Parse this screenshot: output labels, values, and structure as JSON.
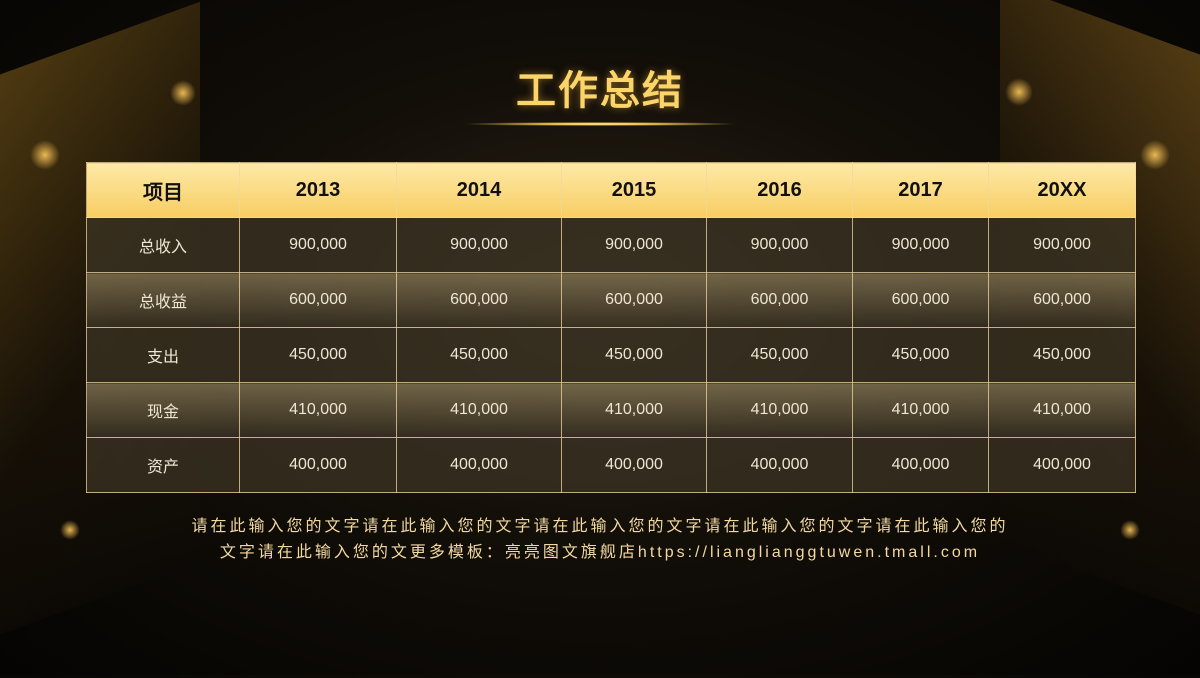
{
  "title": "工作总结",
  "table": {
    "headers": [
      "项目",
      "2013",
      "2014",
      "2015",
      "2016",
      "2017",
      "20XX"
    ],
    "rows": [
      [
        "总收入",
        "900,000",
        "900,000",
        "900,000",
        "900,000",
        "900,000",
        "900,000"
      ],
      [
        "总收益",
        "600,000",
        "600,000",
        "600,000",
        "600,000",
        "600,000",
        "600,000"
      ],
      [
        "支出",
        "450,000",
        "450,000",
        "450,000",
        "450,000",
        "450,000",
        "450,000"
      ],
      [
        "现金",
        "410,000",
        "410,000",
        "410,000",
        "410,000",
        "410,000",
        "410,000"
      ],
      [
        "资产",
        "400,000",
        "400,000",
        "400,000",
        "400,000",
        "400,000",
        "400,000"
      ]
    ]
  },
  "note": {
    "line1": "请在此输入您的文字请在此输入您的文字请在此输入您的文字请在此输入您的文字请在此输入您的",
    "line2": "文字请在此输入您的文更多模板：亮亮图文旗舰店https://lianglianggtuwen.tmall.com"
  },
  "colors": {
    "accent": "#f8cd63",
    "title": "#fbd46a",
    "background": "#0a0805"
  }
}
